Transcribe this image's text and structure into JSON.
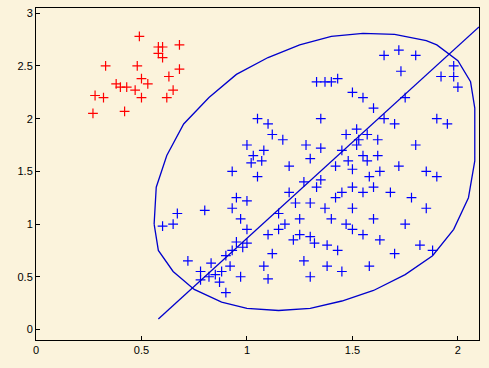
{
  "chart_data": {
    "type": "scatter",
    "xlim": [
      0,
      2.1
    ],
    "ylim": [
      -0.1,
      3.05
    ],
    "xticks": [
      0,
      0.5,
      1,
      1.5,
      2
    ],
    "yticks": [
      0,
      0.5,
      1,
      1.5,
      2,
      2.5,
      3
    ],
    "grid": false,
    "series": [
      {
        "type": "scatter",
        "color": "#ff0000",
        "marker": "plus",
        "x": [
          0.27,
          0.28,
          0.32,
          0.33,
          0.38,
          0.4,
          0.42,
          0.43,
          0.48,
          0.49,
          0.5,
          0.5,
          0.47,
          0.53,
          0.58,
          0.58,
          0.6,
          0.6,
          0.63,
          0.65,
          0.68,
          0.68,
          0.62
        ],
        "y": [
          2.05,
          2.22,
          2.2,
          2.5,
          2.33,
          2.3,
          2.07,
          2.3,
          2.5,
          2.78,
          2.38,
          2.2,
          2.27,
          2.33,
          2.68,
          2.62,
          2.68,
          2.58,
          2.4,
          2.27,
          2.7,
          2.47,
          2.2
        ]
      },
      {
        "type": "scatter",
        "color": "#0000ff",
        "marker": "plus",
        "x": [
          0.65,
          0.67,
          0.72,
          0.78,
          0.82,
          0.83,
          0.85,
          0.87,
          0.88,
          0.9,
          0.9,
          0.92,
          0.93,
          0.95,
          0.97,
          0.98,
          1.0,
          1.0,
          0.95,
          0.93,
          0.93,
          0.97,
          1.0,
          1.0,
          1.02,
          1.03,
          1.05,
          1.07,
          1.08,
          1.1,
          1.1,
          1.1,
          1.12,
          1.12,
          1.15,
          1.15,
          1.17,
          1.2,
          1.2,
          1.22,
          1.23,
          1.25,
          1.27,
          1.28,
          1.3,
          1.3,
          1.3,
          1.32,
          1.33,
          1.33,
          1.35,
          1.35,
          1.35,
          1.37,
          1.37,
          1.38,
          1.38,
          1.4,
          1.4,
          1.42,
          1.42,
          1.43,
          1.43,
          1.45,
          1.45,
          1.45,
          1.47,
          1.47,
          1.48,
          1.5,
          1.5,
          1.5,
          1.5,
          1.5,
          1.52,
          1.52,
          1.53,
          1.55,
          1.55,
          1.55,
          1.55,
          1.57,
          1.57,
          1.58,
          1.58,
          1.6,
          1.6,
          1.6,
          1.62,
          1.63,
          1.63,
          1.65,
          1.65,
          1.68,
          1.7,
          1.7,
          1.72,
          1.72,
          1.73,
          1.75,
          1.75,
          1.78,
          1.8,
          1.8,
          1.82,
          1.85,
          1.85,
          1.88,
          1.9,
          1.9,
          1.92,
          1.95,
          1.98,
          1.98,
          2.0,
          1.62,
          1.05,
          1.18,
          1.25,
          0.6,
          0.8,
          0.78,
          1.08,
          1.27,
          1.3
        ],
        "y": [
          1.0,
          1.1,
          0.65,
          0.47,
          0.5,
          0.63,
          0.52,
          0.45,
          0.55,
          0.35,
          0.7,
          0.6,
          0.75,
          0.83,
          0.5,
          0.78,
          0.82,
          0.95,
          1.25,
          1.15,
          1.5,
          1.05,
          1.22,
          1.75,
          1.58,
          1.65,
          2.0,
          1.6,
          0.6,
          0.48,
          0.9,
          1.95,
          0.72,
          1.85,
          0.95,
          1.1,
          1.8,
          1.55,
          1.3,
          0.85,
          1.2,
          1.05,
          0.65,
          1.75,
          0.5,
          0.88,
          1.62,
          0.82,
          1.35,
          2.35,
          1.42,
          1.72,
          2.0,
          1.15,
          2.35,
          0.6,
          0.8,
          1.05,
          2.35,
          1.25,
          1.55,
          0.75,
          2.38,
          0.55,
          1.3,
          1.7,
          1.0,
          1.85,
          1.6,
          0.95,
          1.15,
          1.35,
          1.52,
          2.25,
          1.75,
          1.9,
          1.8,
          0.9,
          1.65,
          1.3,
          2.2,
          1.6,
          1.85,
          1.45,
          0.6,
          1.05,
          1.35,
          2.1,
          1.8,
          1.5,
          0.85,
          2.0,
          2.6,
          1.3,
          1.95,
          0.72,
          2.65,
          1.55,
          2.45,
          1.0,
          2.2,
          1.25,
          2.6,
          1.75,
          0.8,
          1.15,
          1.5,
          0.75,
          1.45,
          2.0,
          2.4,
          1.95,
          2.5,
          2.4,
          2.3,
          1.65,
          1.45,
          1.0,
          0.9,
          0.98,
          1.13,
          0.55,
          1.7,
          1.4,
          1.2
        ]
      },
      {
        "type": "line",
        "color": "#0000cc",
        "x": [
          0.56,
          0.58,
          0.65,
          0.75,
          0.88,
          1.0,
          1.15,
          1.3,
          1.45,
          1.6,
          1.75,
          1.88,
          1.98,
          2.05,
          2.08,
          2.08,
          2.08,
          2.06,
          2.0,
          1.9,
          1.85,
          1.7,
          1.55,
          1.4,
          1.25,
          1.1,
          0.95,
          0.82,
          0.7,
          0.62,
          0.57,
          0.56
        ],
        "y": [
          1.0,
          0.75,
          0.55,
          0.38,
          0.26,
          0.2,
          0.18,
          0.2,
          0.27,
          0.37,
          0.52,
          0.7,
          0.95,
          1.25,
          1.6,
          1.9,
          2.1,
          2.35,
          2.55,
          2.7,
          2.74,
          2.8,
          2.81,
          2.78,
          2.7,
          2.58,
          2.42,
          2.2,
          1.95,
          1.65,
          1.35,
          1.0
        ]
      },
      {
        "type": "line",
        "color": "#0000cc",
        "x": [
          0.58,
          2.1
        ],
        "y": [
          0.1,
          2.87
        ]
      }
    ]
  }
}
